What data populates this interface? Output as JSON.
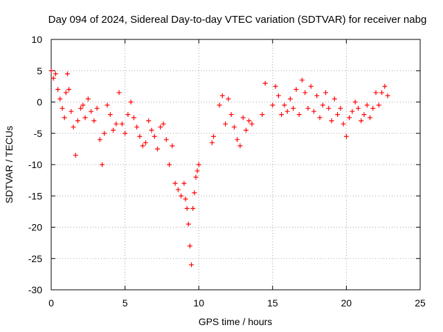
{
  "chart_data": {
    "type": "scatter",
    "title": "Day 094 of 2024, Sidereal Day-to-day VTEC variation (SDTVAR) for receiver nabg",
    "xlabel": "GPS time / hours",
    "ylabel": "SDTVAR / TECUs",
    "xlim": [
      0,
      25
    ],
    "ylim": [
      -30,
      10
    ],
    "x_ticks": [
      0,
      5,
      10,
      15,
      20,
      25
    ],
    "x_tick_labels": [
      "0",
      "5",
      "10",
      "15",
      "20",
      "25"
    ],
    "y_ticks": [
      10,
      5,
      0,
      -5,
      -10,
      -15,
      -20,
      -25,
      -30
    ],
    "y_tick_labels": [
      "10",
      "5",
      "0",
      "-5",
      "-10",
      "-15",
      "-20",
      "-25",
      "-30"
    ],
    "grid": true,
    "marker": "plus",
    "color": "#ff0000",
    "series": [
      {
        "name": "SDTVAR",
        "x": [
          0.0,
          0.15,
          0.3,
          0.45,
          0.6,
          0.75,
          0.9,
          1.0,
          1.1,
          1.2,
          1.35,
          1.5,
          1.65,
          1.8,
          2.0,
          2.15,
          2.3,
          2.5,
          2.7,
          2.9,
          3.1,
          3.3,
          3.45,
          3.6,
          3.8,
          4.0,
          4.2,
          4.4,
          4.6,
          4.8,
          5.0,
          5.2,
          5.4,
          5.6,
          5.8,
          6.0,
          6.2,
          6.4,
          6.6,
          6.8,
          7.0,
          7.2,
          7.4,
          7.6,
          7.8,
          8.0,
          8.2,
          8.4,
          8.6,
          8.8,
          9.0,
          9.1,
          9.2,
          9.3,
          9.4,
          9.5,
          9.6,
          9.7,
          9.8,
          9.9,
          10.0,
          10.9,
          11.0,
          11.4,
          11.6,
          11.8,
          12.0,
          12.2,
          12.4,
          12.6,
          12.8,
          13.0,
          13.2,
          13.4,
          13.6,
          14.3,
          14.5,
          15.0,
          15.2,
          15.4,
          15.6,
          15.8,
          16.0,
          16.2,
          16.4,
          16.6,
          16.8,
          17.0,
          17.2,
          17.4,
          17.6,
          17.8,
          18.0,
          18.2,
          18.4,
          18.6,
          18.8,
          19.0,
          19.2,
          19.4,
          19.6,
          19.8,
          20.0,
          20.2,
          20.4,
          20.6,
          20.8,
          21.0,
          21.2,
          21.4,
          21.6,
          21.8,
          22.0,
          22.2,
          22.4,
          22.6,
          22.8
        ],
        "y": [
          5.0,
          3.8,
          4.5,
          2.0,
          0.5,
          -1.0,
          -2.5,
          1.5,
          4.5,
          2.0,
          -1.5,
          -4.0,
          -8.5,
          -3.0,
          -1.0,
          -0.5,
          -2.5,
          0.5,
          -1.5,
          -3.0,
          -1.0,
          -6.0,
          -10.0,
          -5.0,
          -0.5,
          -2.0,
          -4.5,
          -3.5,
          1.5,
          -3.5,
          -5.0,
          -2.0,
          0.0,
          -2.5,
          -4.0,
          -5.5,
          -7.0,
          -6.5,
          -3.0,
          -4.5,
          -5.5,
          -7.5,
          -4.0,
          -3.5,
          -6.0,
          -10.0,
          -7.0,
          -13.0,
          -14.0,
          -15.0,
          -13.0,
          -15.5,
          -17.0,
          -19.5,
          -23.0,
          -26.0,
          -17.0,
          -14.5,
          -12.0,
          -11.0,
          -10.0,
          -6.5,
          -5.5,
          -0.5,
          1.0,
          -3.5,
          0.5,
          -2.0,
          -4.0,
          -6.0,
          -7.0,
          -2.5,
          -4.5,
          -3.0,
          -3.5,
          -2.0,
          3.0,
          -0.5,
          2.5,
          1.0,
          -2.0,
          -0.5,
          -1.5,
          0.5,
          -1.0,
          2.0,
          -2.0,
          3.5,
          1.5,
          -1.0,
          2.5,
          -1.5,
          1.0,
          -2.5,
          -0.5,
          1.5,
          -1.0,
          -3.0,
          0.5,
          -2.0,
          -1.0,
          -3.5,
          -5.5,
          -2.5,
          -1.5,
          0.0,
          -1.0,
          -3.0,
          -2.0,
          -0.5,
          -2.5,
          -1.0,
          1.5,
          -0.5,
          1.5,
          2.5,
          1.0
        ]
      }
    ]
  }
}
